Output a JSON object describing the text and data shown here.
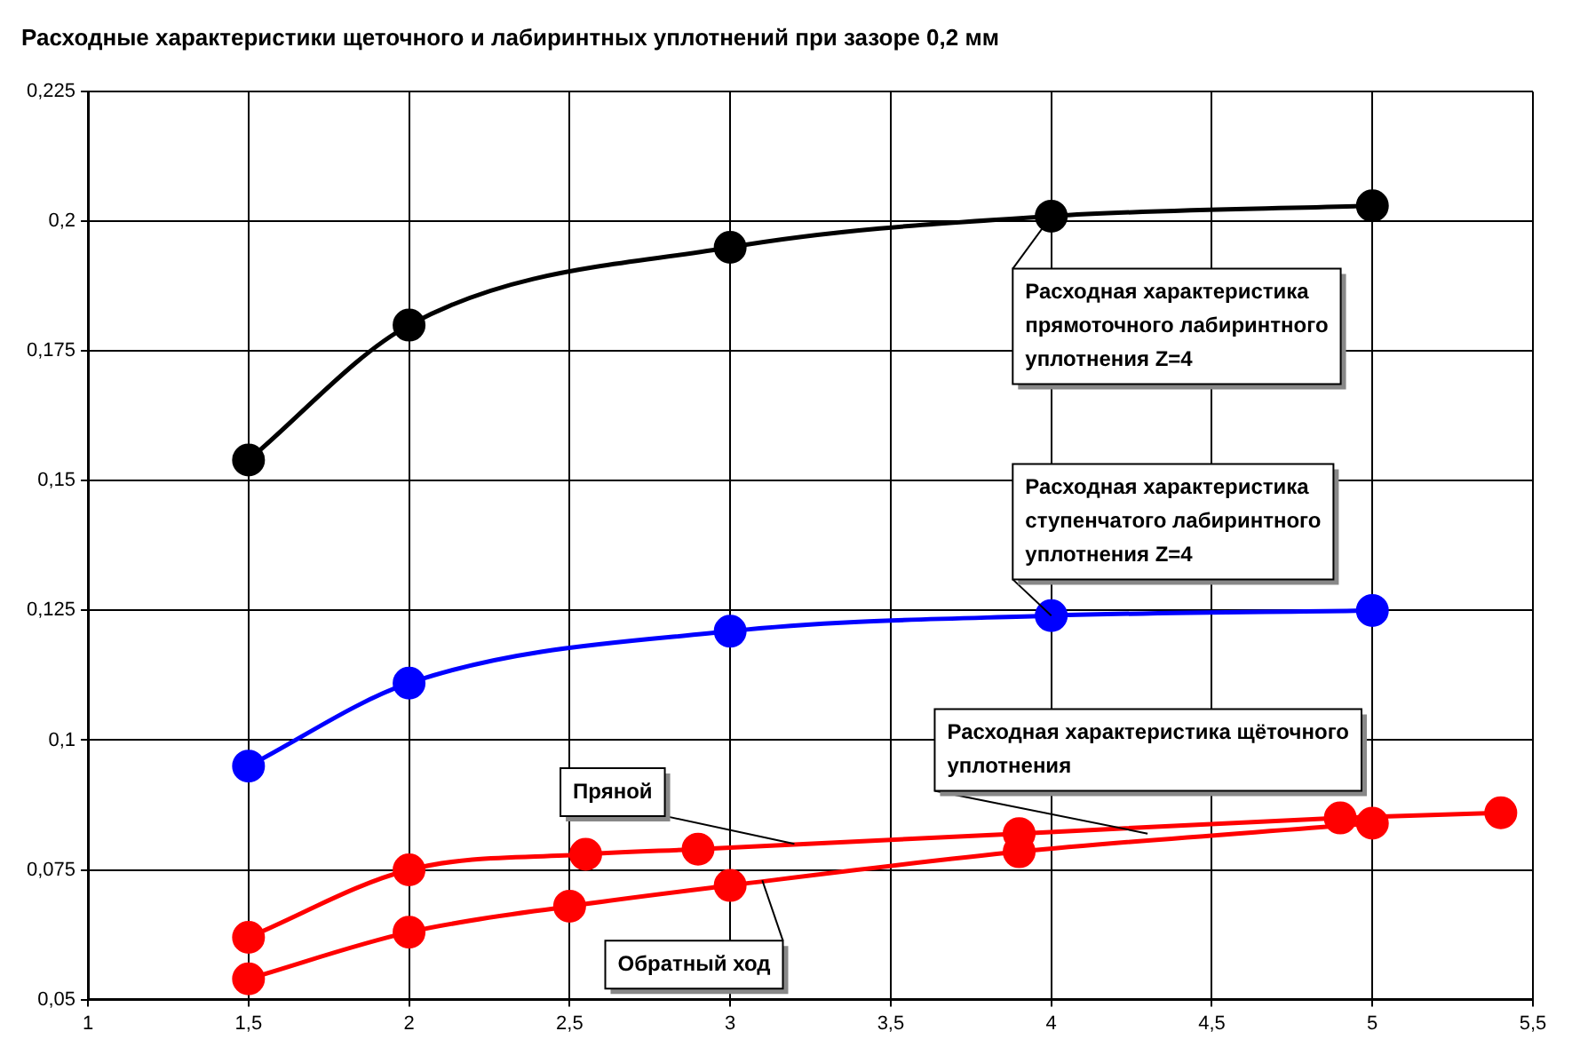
{
  "chart_data": {
    "type": "line",
    "title": "Расходные характеристики щеточного и лабиринтных уплотнений при зазоре 0,2 мм",
    "series": [
      {
        "color": "#000000",
        "x": [
          1.5,
          2,
          3,
          4,
          5
        ],
        "values": [
          0.154,
          0.18,
          0.195,
          0.201,
          0.203
        ]
      },
      {
        "color": "#0000ff",
        "x": [
          1.5,
          2,
          3,
          4,
          5
        ],
        "values": [
          0.095,
          0.111,
          0.121,
          0.124,
          0.125
        ]
      },
      {
        "color": "#ff0000",
        "x": [
          1.5,
          2,
          2.55,
          2.9,
          3.9,
          4.9,
          5.4
        ],
        "values": [
          0.062,
          0.075,
          0.078,
          0.079,
          0.082,
          0.085,
          0.086
        ]
      },
      {
        "color": "#ff0000",
        "x": [
          1.5,
          2,
          2.5,
          3,
          3.9,
          5
        ],
        "values": [
          0.054,
          0.063,
          0.068,
          0.072,
          0.0785,
          0.084
        ]
      }
    ],
    "xlim": [
      1,
      5.5
    ],
    "xticks": [
      1,
      {
        "value": 1.5,
        "label": "1,5"
      },
      2,
      {
        "value": 2.5,
        "label": "2,5"
      },
      3,
      {
        "value": 3.5,
        "label": "3,5"
      },
      4,
      {
        "value": 4.5,
        "label": "4,5"
      },
      5,
      {
        "value": 5.5,
        "label": "5,5"
      }
    ],
    "ylim": [
      0.05,
      0.225
    ],
    "yticks": [
      {
        "value": 0.05,
        "label": "0,05"
      },
      {
        "value": 0.075,
        "label": "0,075"
      },
      {
        "value": 0.1,
        "label": "0,1"
      },
      {
        "value": 0.125,
        "label": "0,125"
      },
      {
        "value": 0.15,
        "label": "0,15"
      },
      {
        "value": 0.175,
        "label": "0,175"
      },
      {
        "value": 0.2,
        "label": "0,2"
      },
      {
        "value": 0.225,
        "label": "0,225"
      }
    ],
    "grid": true,
    "marker": "circle",
    "line_style": "solid",
    "legend": false,
    "annotations": [
      {
        "text": "Расходная характеристика прямоточного лабиринтного уплотнения Z=4",
        "x": 4,
        "y": 0.201
      },
      {
        "text": "Расходная характеристика ступенчатого лабиринтного уплотнения Z=4",
        "x": 4,
        "y": 0.124
      },
      {
        "text": "Расходная характеристика щёточного уплотнения",
        "x": 4.3,
        "y": 0.082
      },
      {
        "text": "Пряной",
        "x": 3.2,
        "y": 0.08
      },
      {
        "text": "Обратный ход",
        "x": 3.1,
        "y": 0.073
      }
    ]
  }
}
